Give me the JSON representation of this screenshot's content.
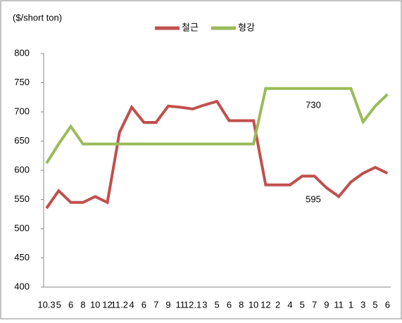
{
  "chart_data": {
    "type": "line",
    "y_label": "($/short ton)",
    "categories": [
      "10.3",
      "5",
      "6",
      "8",
      "10",
      "12",
      "11.2",
      "4",
      "6",
      "7",
      "9",
      "11",
      "12.1",
      "3",
      "5",
      "6",
      "8",
      "10",
      "12",
      "2",
      "4",
      "5",
      "7",
      "9",
      "11",
      "1",
      "3",
      "5",
      "6"
    ],
    "series": [
      {
        "name": "철근",
        "color": "#c0504d",
        "values": [
          535,
          565,
          545,
          545,
          555,
          545,
          665,
          708,
          682,
          682,
          710,
          708,
          705,
          712,
          718,
          685,
          685,
          685,
          575,
          575,
          575,
          590,
          590,
          570,
          555,
          580,
          595,
          605,
          595
        ]
      },
      {
        "name": "형강",
        "color": "#9bbb59",
        "values": [
          612,
          645,
          675,
          645,
          645,
          645,
          645,
          645,
          645,
          645,
          645,
          645,
          645,
          645,
          645,
          645,
          645,
          645,
          740,
          740,
          740,
          740,
          740,
          740,
          740,
          740,
          683,
          710,
          730
        ]
      }
    ],
    "annotations": [
      {
        "text": "730"
      },
      {
        "text": "595"
      }
    ],
    "ylim": [
      400,
      800
    ],
    "yticks": [
      400,
      450,
      500,
      550,
      600,
      650,
      700,
      750,
      800
    ],
    "legend": "top",
    "grid": false
  }
}
